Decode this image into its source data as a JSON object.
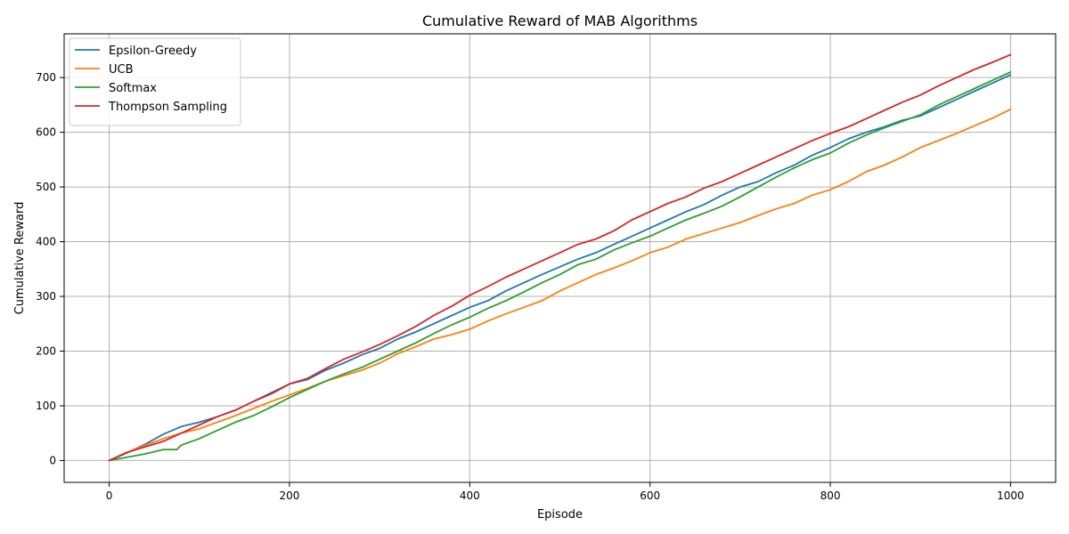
{
  "chart_data": {
    "type": "line",
    "title": "Cumulative Reward of MAB Algorithms",
    "xlabel": "Episode",
    "ylabel": "Cumulative Reward",
    "xlim": [
      -50,
      1050
    ],
    "ylim": [
      -40,
      780
    ],
    "xticks": [
      0,
      200,
      400,
      600,
      800,
      1000
    ],
    "yticks": [
      0,
      100,
      200,
      300,
      400,
      500,
      600,
      700
    ],
    "grid": true,
    "legend_position": "top-left",
    "series": [
      {
        "name": "Epsilon-Greedy",
        "color": "#1f77b4",
        "x": [
          0,
          20,
          40,
          60,
          80,
          100,
          120,
          140,
          160,
          180,
          200,
          220,
          240,
          260,
          280,
          300,
          320,
          340,
          360,
          380,
          400,
          420,
          440,
          460,
          480,
          500,
          520,
          540,
          560,
          580,
          600,
          620,
          640,
          660,
          680,
          700,
          720,
          740,
          760,
          780,
          800,
          820,
          840,
          860,
          880,
          900,
          920,
          940,
          960,
          980,
          1000
        ],
        "y": [
          0,
          14,
          30,
          48,
          62,
          70,
          80,
          92,
          108,
          124,
          140,
          148,
          165,
          178,
          193,
          205,
          222,
          235,
          250,
          265,
          280,
          292,
          310,
          325,
          340,
          354,
          368,
          380,
          395,
          410,
          425,
          440,
          455,
          468,
          485,
          500,
          510,
          526,
          540,
          558,
          572,
          588,
          600,
          610,
          622,
          630,
          645,
          660,
          675,
          690,
          705
        ]
      },
      {
        "name": "UCB",
        "color": "#ff7f0e",
        "x": [
          0,
          20,
          40,
          60,
          80,
          100,
          120,
          140,
          160,
          180,
          200,
          220,
          240,
          260,
          280,
          300,
          320,
          340,
          360,
          380,
          400,
          420,
          440,
          460,
          480,
          500,
          520,
          540,
          560,
          580,
          600,
          620,
          640,
          660,
          680,
          700,
          720,
          740,
          760,
          780,
          800,
          820,
          840,
          860,
          880,
          900,
          920,
          940,
          960,
          980,
          1000
        ],
        "y": [
          0,
          15,
          28,
          40,
          50,
          58,
          70,
          82,
          95,
          108,
          120,
          132,
          145,
          155,
          165,
          178,
          195,
          208,
          222,
          230,
          240,
          255,
          268,
          280,
          292,
          310,
          325,
          340,
          352,
          365,
          380,
          390,
          405,
          415,
          425,
          435,
          448,
          460,
          470,
          485,
          495,
          510,
          528,
          540,
          555,
          572,
          585,
          598,
          612,
          626,
          642
        ]
      },
      {
        "name": "Softmax",
        "color": "#2ca02c",
        "x": [
          0,
          20,
          40,
          60,
          75,
          80,
          100,
          120,
          140,
          160,
          180,
          200,
          220,
          240,
          260,
          280,
          300,
          320,
          340,
          360,
          380,
          400,
          420,
          440,
          460,
          480,
          500,
          520,
          540,
          560,
          580,
          600,
          620,
          640,
          660,
          680,
          700,
          720,
          740,
          760,
          780,
          800,
          820,
          840,
          860,
          880,
          900,
          920,
          940,
          960,
          980,
          1000
        ],
        "y": [
          0,
          6,
          12,
          20,
          20,
          28,
          40,
          55,
          70,
          82,
          98,
          115,
          130,
          145,
          158,
          170,
          185,
          200,
          215,
          232,
          248,
          262,
          278,
          292,
          308,
          325,
          340,
          358,
          368,
          385,
          398,
          410,
          425,
          440,
          452,
          465,
          482,
          500,
          518,
          535,
          550,
          562,
          580,
          595,
          608,
          620,
          632,
          650,
          665,
          680,
          695,
          710
        ]
      },
      {
        "name": "Thompson Sampling",
        "color": "#d62728",
        "x": [
          0,
          20,
          40,
          60,
          80,
          100,
          120,
          140,
          160,
          180,
          200,
          220,
          240,
          260,
          280,
          300,
          320,
          340,
          360,
          380,
          400,
          420,
          440,
          460,
          480,
          500,
          520,
          540,
          560,
          580,
          600,
          620,
          640,
          660,
          680,
          700,
          720,
          740,
          760,
          780,
          800,
          820,
          840,
          860,
          880,
          900,
          920,
          940,
          960,
          980,
          1000
        ],
        "y": [
          0,
          15,
          25,
          35,
          50,
          65,
          80,
          92,
          108,
          122,
          140,
          150,
          168,
          185,
          198,
          212,
          228,
          245,
          265,
          282,
          302,
          318,
          335,
          350,
          365,
          380,
          395,
          405,
          420,
          440,
          455,
          470,
          482,
          498,
          510,
          525,
          540,
          555,
          570,
          585,
          598,
          610,
          625,
          640,
          655,
          668,
          685,
          700,
          715,
          728,
          742
        ]
      }
    ]
  }
}
